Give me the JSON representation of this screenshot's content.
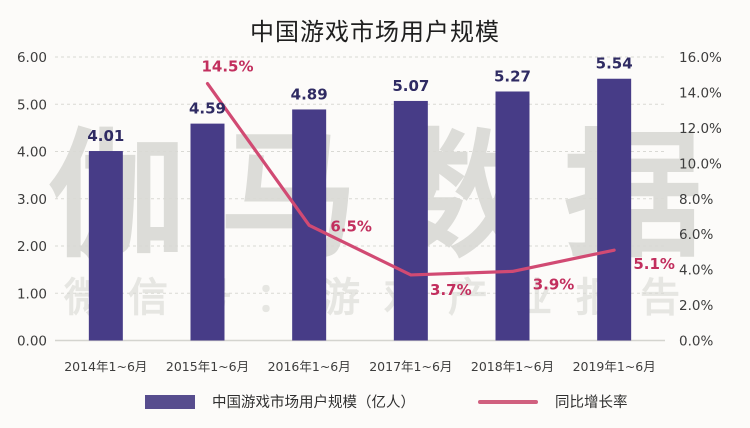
{
  "title": "中国游戏市场用户规模",
  "watermark": {
    "line1": "伽马数据",
    "line2": "微信号：游戏产业报告"
  },
  "legend": {
    "bar_label": "中国游戏市场用户规模（亿人）",
    "line_label": "同比增长率"
  },
  "colors": {
    "bar_fill": "#473c87",
    "bar_value_label": "#2f2b63",
    "line_stroke": "#d14a73",
    "line_value_label": "#c22f5e",
    "axis_text": "#3d3d3d",
    "gridline": "#d9d9d4",
    "baseline": "#d4d4cf",
    "legend_bar_swatch": "#574d8e",
    "legend_line_swatch": "#d0607f"
  },
  "chart_data": {
    "type": "bar",
    "title": "中国游戏市场用户规模",
    "categories": [
      "2014年1~6月",
      "2015年1~6月",
      "2016年1~6月",
      "2017年1~6月",
      "2018年1~6月",
      "2019年1~6月"
    ],
    "series": [
      {
        "name": "中国游戏市场用户规模（亿人）",
        "type": "bar",
        "axis": "left",
        "values": [
          4.01,
          4.59,
          4.89,
          5.07,
          5.27,
          5.54
        ],
        "labels": [
          "4.01",
          "4.59",
          "4.89",
          "5.07",
          "5.27",
          "5.54"
        ]
      },
      {
        "name": "同比增长率",
        "type": "line",
        "axis": "right",
        "values": [
          null,
          14.5,
          6.5,
          3.7,
          3.9,
          5.1
        ],
        "labels": [
          null,
          "14.5%",
          "6.5%",
          "3.7%",
          "3.9%",
          "5.1%"
        ]
      }
    ],
    "left_axis": {
      "min": 0,
      "max": 6,
      "step": 1,
      "ticks": [
        "0.00",
        "1.00",
        "2.00",
        "3.00",
        "4.00",
        "5.00",
        "6.00"
      ]
    },
    "right_axis": {
      "min": 0,
      "max": 16,
      "step": 2,
      "ticks": [
        "0.0%",
        "2.0%",
        "4.0%",
        "6.0%",
        "8.0%",
        "10.0%",
        "12.0%",
        "14.0%",
        "16.0%"
      ]
    },
    "grid": "horizontal dashed at left-axis ticks",
    "legend_position": "bottom"
  }
}
